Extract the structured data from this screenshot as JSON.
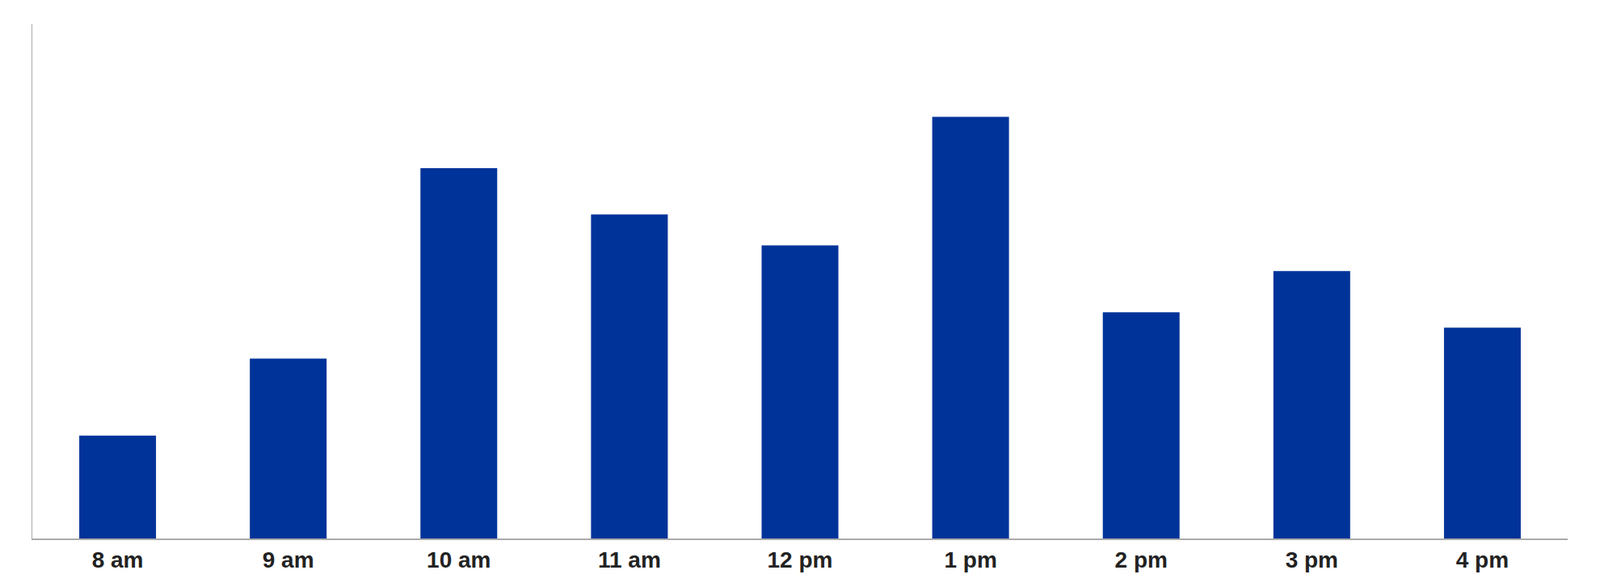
{
  "chart_data": {
    "type": "bar",
    "categories": [
      "8 am",
      "9 am",
      "10 am",
      "11 am",
      "12 pm",
      "1 pm",
      "2 pm",
      "3 pm",
      "4 pm"
    ],
    "values": [
      0.2,
      0.35,
      0.72,
      0.63,
      0.57,
      0.82,
      0.44,
      0.52,
      0.41
    ],
    "color": "#003399",
    "ylim": [
      0,
      1.0
    ],
    "grid": false,
    "tick_labels": "x"
  }
}
